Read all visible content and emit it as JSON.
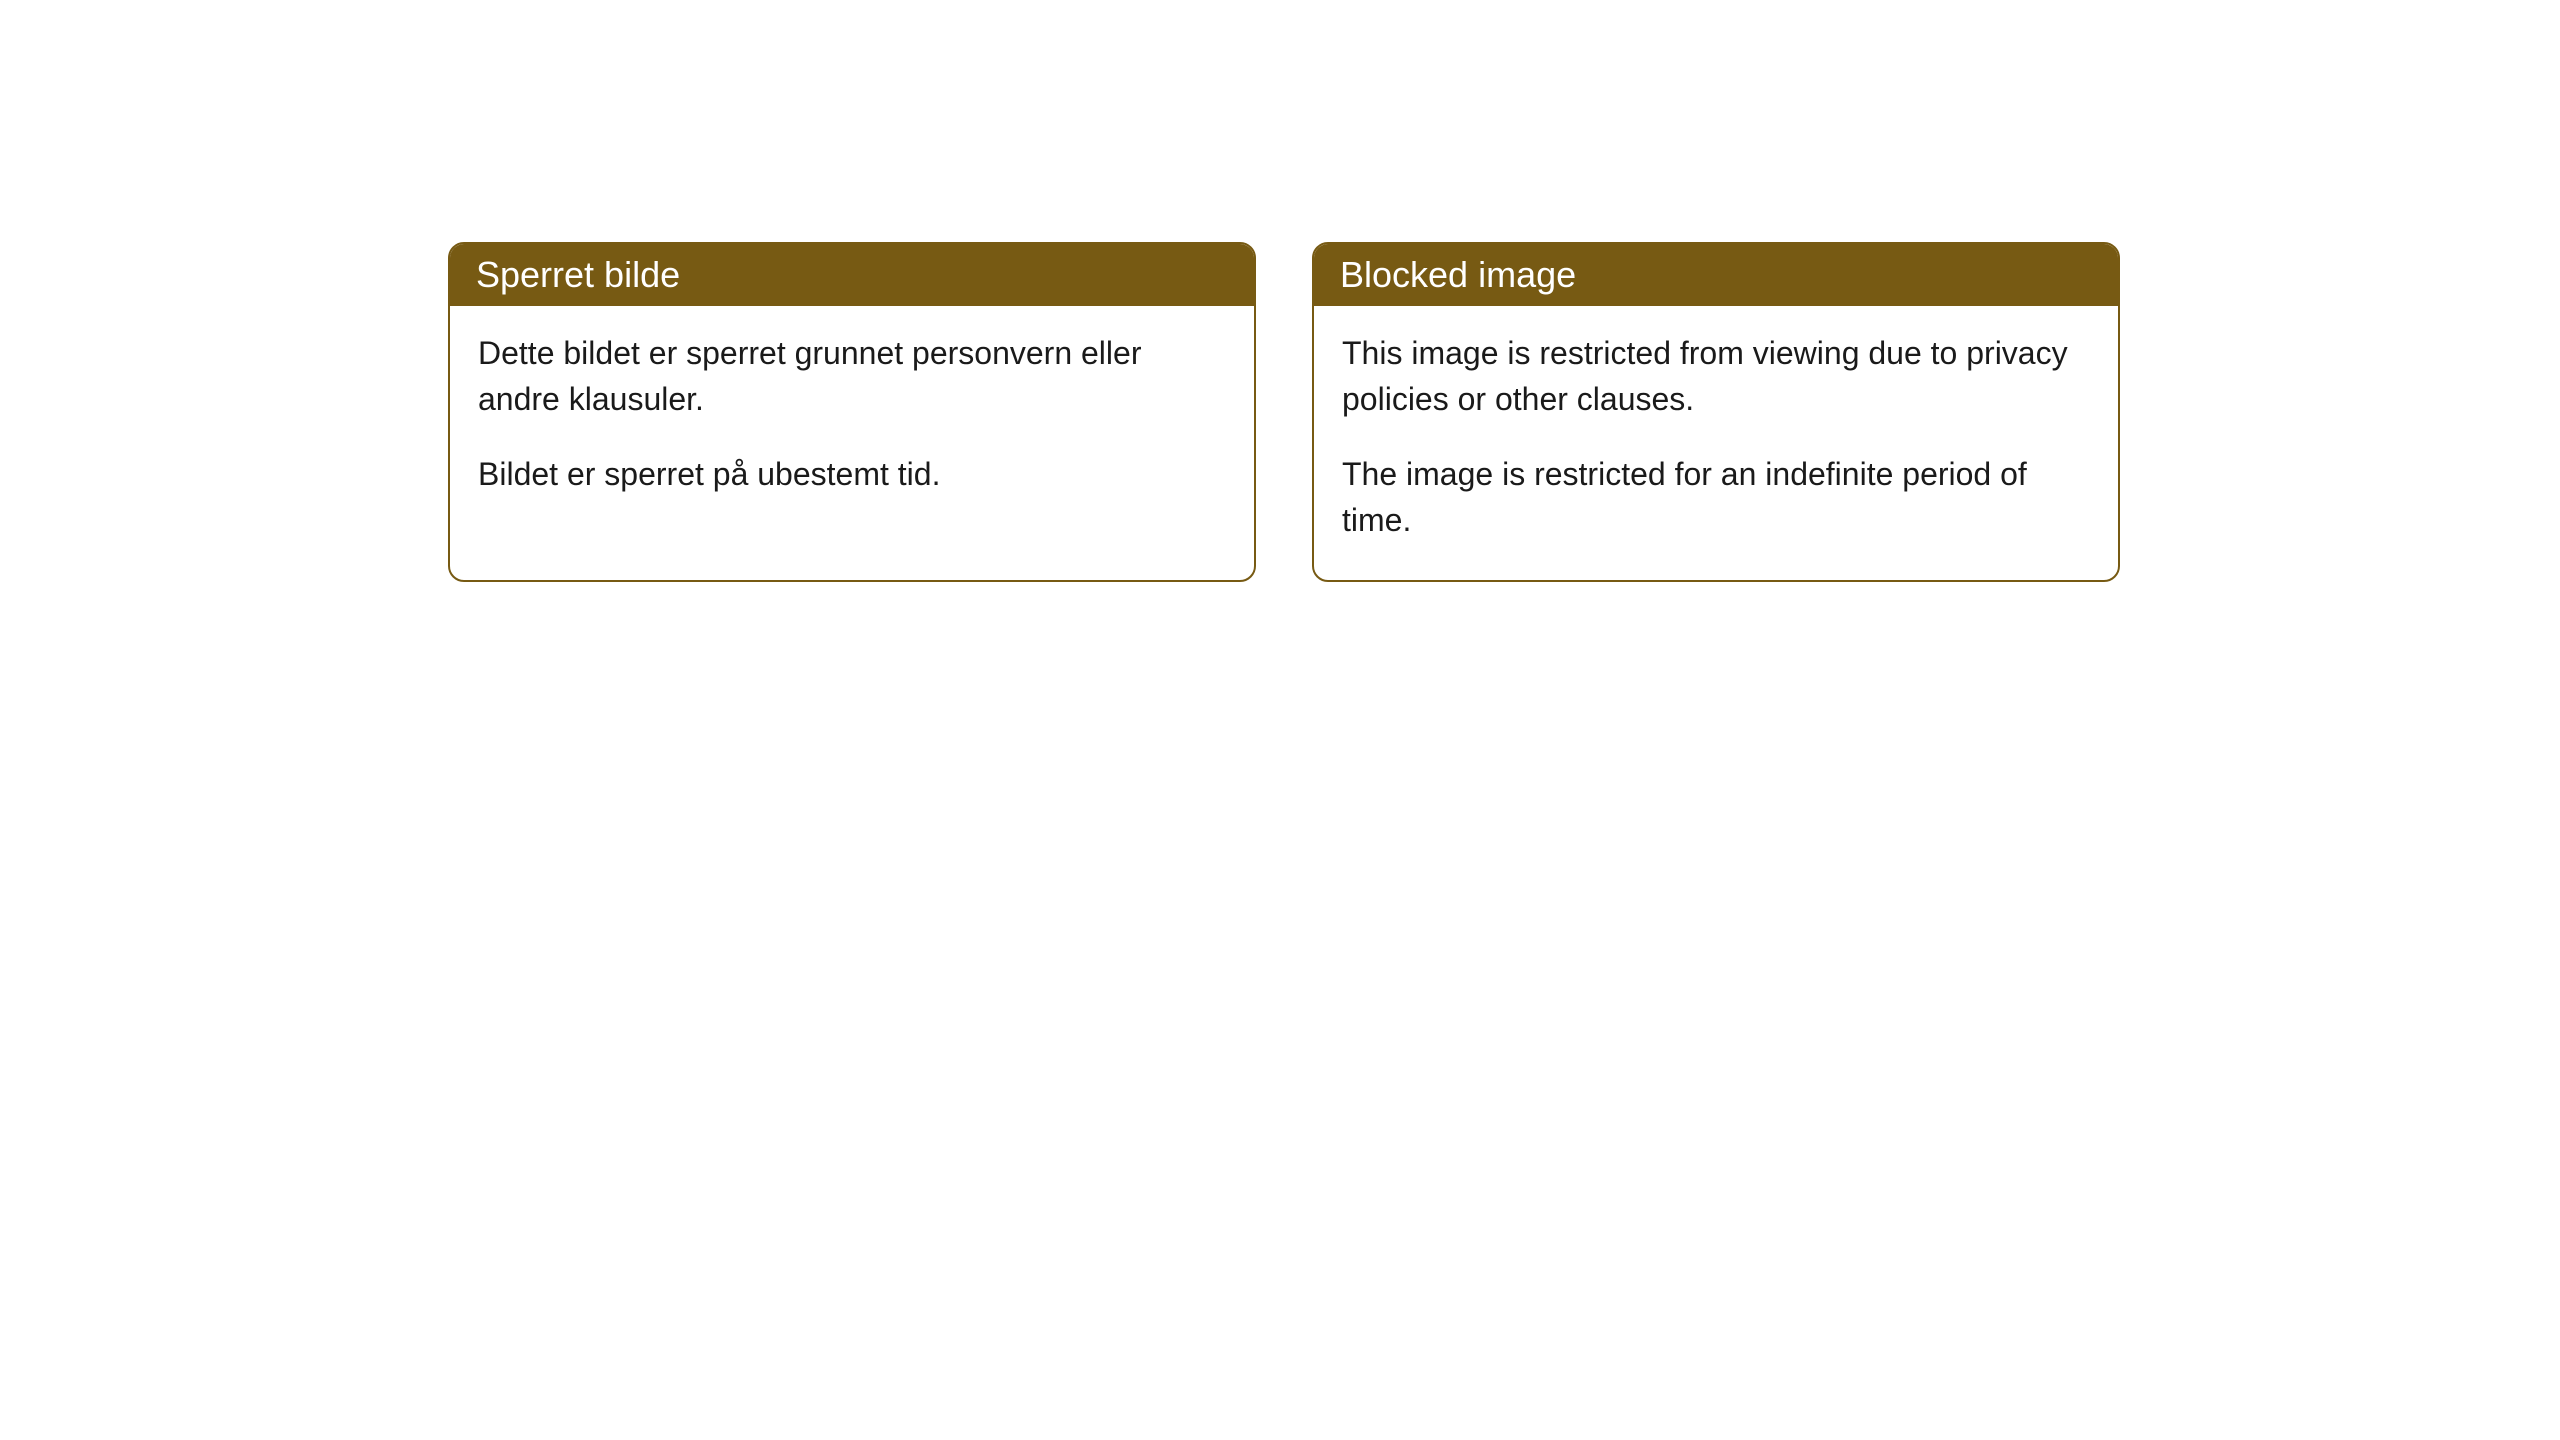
{
  "colors": {
    "header_bg": "#775a13",
    "header_text": "#ffffff",
    "body_bg": "#ffffff",
    "body_text": "#1a1a1a",
    "border": "#775a13"
  },
  "cards": [
    {
      "title": "Sperret bilde",
      "paragraphs": [
        "Dette bildet er sperret grunnet personvern eller andre klausuler.",
        "Bildet er sperret på ubestemt tid."
      ]
    },
    {
      "title": "Blocked image",
      "paragraphs": [
        "This image is restricted from viewing due to privacy policies or other clauses.",
        "The image is restricted for an indefinite period of time."
      ]
    }
  ]
}
